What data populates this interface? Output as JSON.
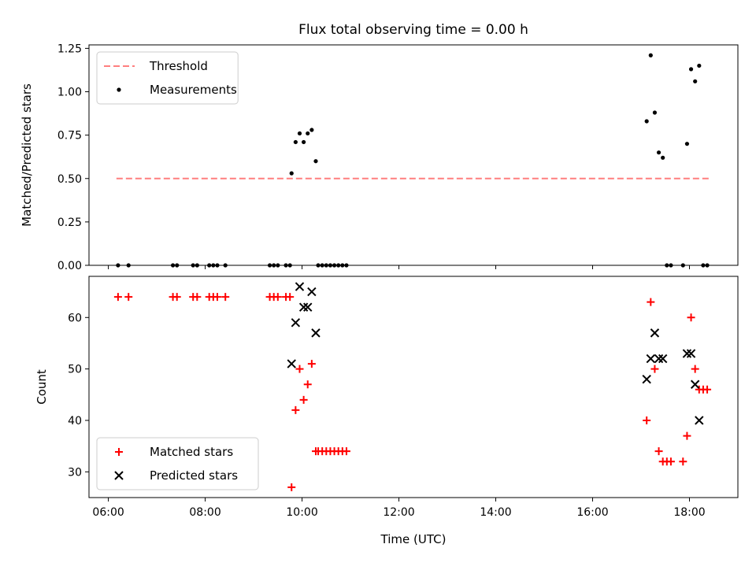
{
  "figure_title": "Flux total observing time = 0.00 h",
  "chart_data": [
    {
      "type": "scatter",
      "ylabel": "Matched/Predicted stars",
      "xlabel": "",
      "xlim": [
        "05:36",
        "19:00"
      ],
      "ylim": [
        0,
        1.27
      ],
      "yticks": [
        0.0,
        0.25,
        0.5,
        0.75,
        1.0,
        1.25
      ],
      "ytick_labels": [
        "0.00",
        "0.25",
        "0.50",
        "0.75",
        "1.00",
        "1.25"
      ],
      "xticks": [
        "06:00",
        "08:00",
        "10:00",
        "12:00",
        "14:00",
        "16:00",
        "18:00"
      ],
      "show_xtick_labels": false,
      "legend_position": "upper left",
      "threshold": {
        "name": "Threshold",
        "y": 0.5,
        "x": [
          "06:10",
          "18:24"
        ],
        "color": "#ff7f7f",
        "style": "dashed"
      },
      "series": [
        {
          "name": "Measurements",
          "color": "#000000",
          "marker": "dot",
          "points": [
            [
              "06:12",
              0
            ],
            [
              "06:25",
              0
            ],
            [
              "07:20",
              0
            ],
            [
              "07:25",
              0
            ],
            [
              "07:45",
              0
            ],
            [
              "07:50",
              0
            ],
            [
              "08:05",
              0
            ],
            [
              "08:10",
              0
            ],
            [
              "08:15",
              0
            ],
            [
              "08:25",
              0
            ],
            [
              "09:20",
              0
            ],
            [
              "09:25",
              0
            ],
            [
              "09:30",
              0
            ],
            [
              "09:40",
              0
            ],
            [
              "09:45",
              0
            ],
            [
              "09:47",
              0.53
            ],
            [
              "09:52",
              0.71
            ],
            [
              "09:57",
              0.76
            ],
            [
              "10:02",
              0.71
            ],
            [
              "10:07",
              0.76
            ],
            [
              "10:12",
              0.78
            ],
            [
              "10:17",
              0.6
            ],
            [
              "10:20",
              0
            ],
            [
              "10:25",
              0
            ],
            [
              "10:30",
              0
            ],
            [
              "10:35",
              0
            ],
            [
              "10:40",
              0
            ],
            [
              "10:45",
              0
            ],
            [
              "10:50",
              0
            ],
            [
              "10:55",
              0
            ],
            [
              "17:07",
              0.83
            ],
            [
              "17:12",
              1.21
            ],
            [
              "17:17",
              0.88
            ],
            [
              "17:22",
              0.65
            ],
            [
              "17:27",
              0.62
            ],
            [
              "17:32",
              0
            ],
            [
              "17:37",
              0
            ],
            [
              "17:52",
              0
            ],
            [
              "17:57",
              0.7
            ],
            [
              "18:02",
              1.13
            ],
            [
              "18:07",
              1.06
            ],
            [
              "18:12",
              1.15
            ],
            [
              "18:17",
              0
            ],
            [
              "18:22",
              0
            ]
          ]
        }
      ]
    },
    {
      "type": "scatter",
      "ylabel": "Count",
      "xlabel": "Time (UTC)",
      "xlim": [
        "05:36",
        "19:00"
      ],
      "ylim": [
        25,
        68
      ],
      "yticks": [
        30,
        40,
        50,
        60
      ],
      "xticks": [
        "06:00",
        "08:00",
        "10:00",
        "12:00",
        "14:00",
        "16:00",
        "18:00"
      ],
      "show_xtick_labels": true,
      "legend_position": "lower left",
      "series": [
        {
          "name": "Matched stars",
          "color": "#ff0000",
          "marker": "plus",
          "points": [
            [
              "06:12",
              64
            ],
            [
              "06:25",
              64
            ],
            [
              "07:20",
              64
            ],
            [
              "07:25",
              64
            ],
            [
              "07:45",
              64
            ],
            [
              "07:50",
              64
            ],
            [
              "08:05",
              64
            ],
            [
              "08:10",
              64
            ],
            [
              "08:15",
              64
            ],
            [
              "08:25",
              64
            ],
            [
              "09:20",
              64
            ],
            [
              "09:25",
              64
            ],
            [
              "09:30",
              64
            ],
            [
              "09:40",
              64
            ],
            [
              "09:45",
              64
            ],
            [
              "09:47",
              27
            ],
            [
              "09:52",
              42
            ],
            [
              "09:57",
              50
            ],
            [
              "10:02",
              44
            ],
            [
              "10:07",
              47
            ],
            [
              "10:12",
              51
            ],
            [
              "10:17",
              34
            ],
            [
              "10:20",
              34
            ],
            [
              "10:25",
              34
            ],
            [
              "10:30",
              34
            ],
            [
              "10:35",
              34
            ],
            [
              "10:40",
              34
            ],
            [
              "10:45",
              34
            ],
            [
              "10:50",
              34
            ],
            [
              "10:55",
              34
            ],
            [
              "17:07",
              40
            ],
            [
              "17:12",
              63
            ],
            [
              "17:17",
              50
            ],
            [
              "17:22",
              34
            ],
            [
              "17:27",
              32
            ],
            [
              "17:32",
              32
            ],
            [
              "17:37",
              32
            ],
            [
              "17:52",
              32
            ],
            [
              "17:57",
              37
            ],
            [
              "18:02",
              60
            ],
            [
              "18:07",
              50
            ],
            [
              "18:12",
              46
            ],
            [
              "18:17",
              46
            ],
            [
              "18:22",
              46
            ]
          ]
        },
        {
          "name": "Predicted stars",
          "color": "#000000",
          "marker": "x",
          "points": [
            [
              "09:47",
              51
            ],
            [
              "09:52",
              59
            ],
            [
              "09:57",
              66
            ],
            [
              "10:02",
              62
            ],
            [
              "10:07",
              62
            ],
            [
              "10:12",
              65
            ],
            [
              "10:17",
              57
            ],
            [
              "17:07",
              48
            ],
            [
              "17:12",
              52
            ],
            [
              "17:17",
              57
            ],
            [
              "17:22",
              52
            ],
            [
              "17:27",
              52
            ],
            [
              "17:57",
              53
            ],
            [
              "18:02",
              53
            ],
            [
              "18:07",
              47
            ],
            [
              "18:12",
              40
            ]
          ]
        }
      ]
    }
  ]
}
